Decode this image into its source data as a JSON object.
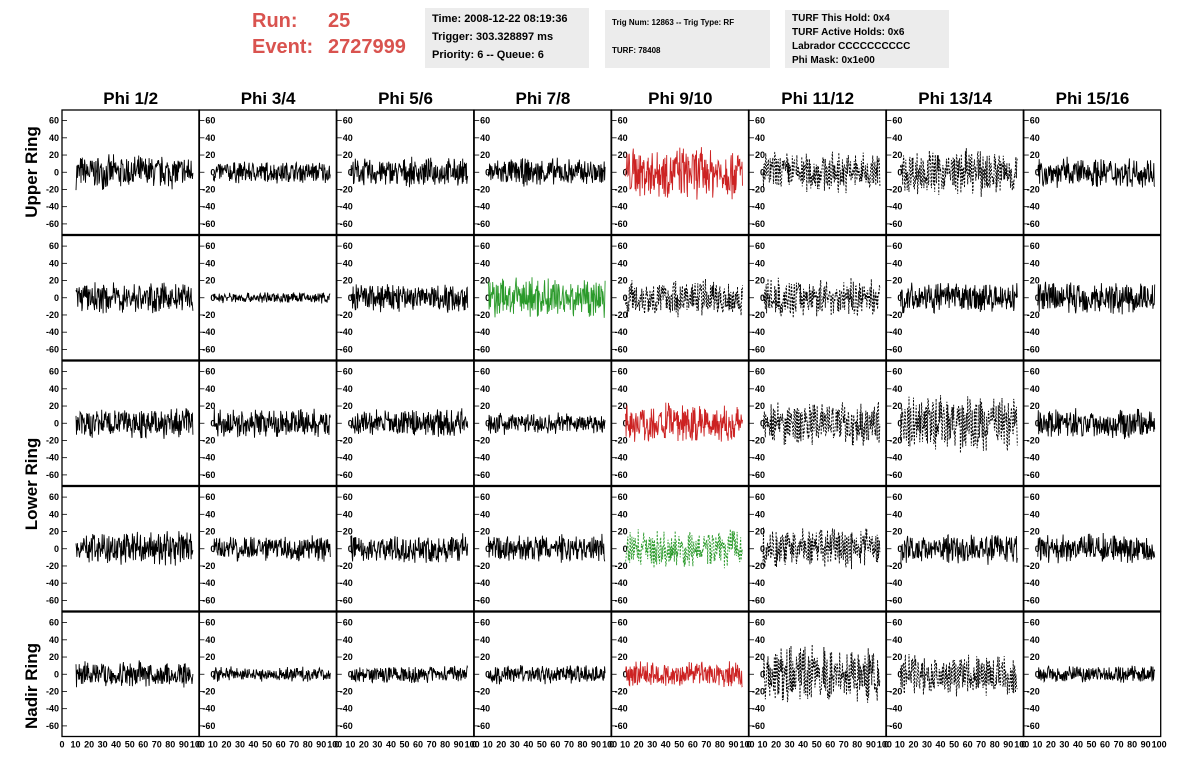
{
  "header": {
    "run_label": "Run:",
    "run_value": "25",
    "event_label": "Event:",
    "event_value": "2727999"
  },
  "info_box_1": {
    "time": "Time: 2008-12-22 08:19:36",
    "trigger": "Trigger: 303.328897 ms",
    "priority": "Priority: 6 -- Queue: 6"
  },
  "info_box_2": {
    "trig": "Trig Num: 12863 -- Trig Type: RF",
    "turf": "TURF: 78408"
  },
  "info_box_3": {
    "this_hold": "TURF This Hold: 0x4",
    "active_holds": "TURF Active Holds: 0x6",
    "labrador": "Labrador CCCCCCCCCC",
    "phi_mask": "Phi Mask: 0x1e00"
  },
  "colors": {
    "header_red": "#d9534f",
    "trace_black": "#000000",
    "trace_red": "#cc2222",
    "trace_green": "#2a9a2a"
  },
  "chart_data": {
    "type": "line",
    "columns": [
      "Phi 1/2",
      "Phi 3/4",
      "Phi 5/6",
      "Phi 7/8",
      "Phi 9/10",
      "Phi 11/12",
      "Phi 13/14",
      "Phi 15/16"
    ],
    "rows": [
      "Upper Ring",
      "Upper Ring",
      "Lower Ring",
      "Lower Ring",
      "Nadir Ring"
    ],
    "row_labels": [
      "Upper Ring",
      "Lower Ring",
      "Nadir Ring"
    ],
    "xlim": [
      0,
      100
    ],
    "ylim": [
      -70,
      70
    ],
    "x_ticks": [
      "0",
      "10",
      "20",
      "30",
      "40",
      "50",
      "60",
      "70",
      "80",
      "90",
      "100"
    ],
    "y_ticks": [
      "60",
      "40",
      "20",
      "0",
      "-20",
      "-40",
      "-60"
    ],
    "panel_styles": [
      [
        "solid-black",
        "solid-black",
        "solid-black",
        "solid-black",
        "solid-red",
        "dashed-black",
        "dashed-black",
        "solid-black"
      ],
      [
        "solid-black",
        "solid-black",
        "solid-black",
        "solid-green",
        "dashed-black",
        "dashed-black",
        "solid-black",
        "solid-black"
      ],
      [
        "solid-black",
        "solid-black",
        "solid-black",
        "solid-black",
        "solid-red",
        "dashed-black",
        "dashed-black",
        "solid-black"
      ],
      [
        "solid-black",
        "solid-black",
        "solid-black",
        "solid-black",
        "dashed-green",
        "dashed-black",
        "solid-black",
        "solid-black"
      ],
      [
        "solid-black",
        "solid-black",
        "solid-black",
        "solid-black",
        "solid-red",
        "dashed-black",
        "dashed-black",
        "solid-black"
      ]
    ],
    "panel_amplitudes": [
      [
        18,
        12,
        15,
        15,
        28,
        22,
        25,
        16
      ],
      [
        16,
        6,
        16,
        22,
        20,
        20,
        16,
        18
      ],
      [
        16,
        15,
        15,
        12,
        22,
        24,
        30,
        16
      ],
      [
        18,
        14,
        15,
        15,
        20,
        22,
        16,
        16
      ],
      [
        14,
        8,
        9,
        10,
        14,
        30,
        22,
        9
      ]
    ]
  }
}
